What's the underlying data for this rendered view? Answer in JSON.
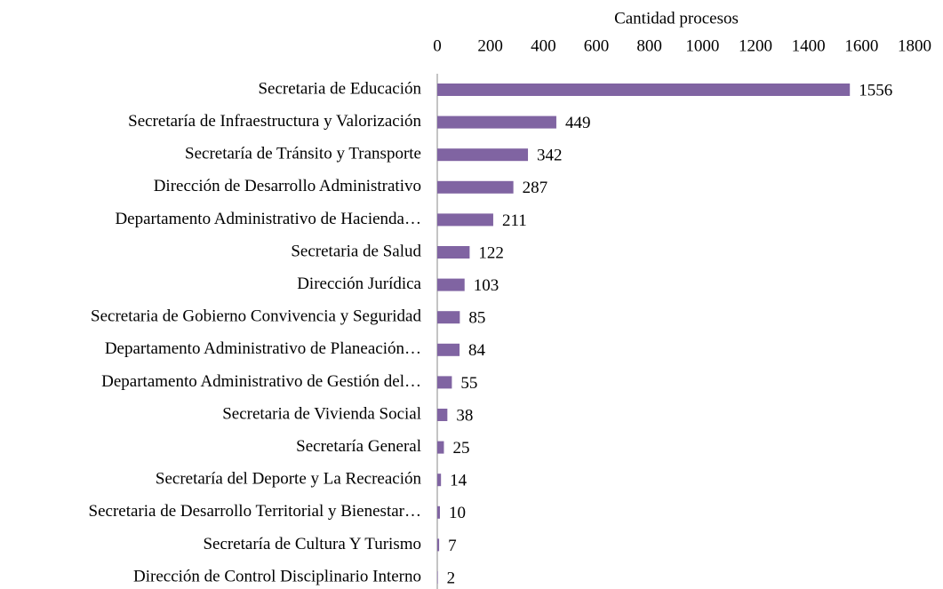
{
  "chart_data": {
    "type": "bar",
    "orientation": "horizontal",
    "x_label": "Cantidad procesos",
    "categories": [
      "Secretaria de Educación",
      "Secretaría de Infraestructura y Valorización",
      "Secretaría de Tránsito y Transporte",
      "Dirección de Desarrollo Administrativo",
      "Departamento Administrativo de Hacienda…",
      "Secretaria de Salud",
      "Dirección Jurídica",
      "Secretaria de Gobierno Convivencia y Seguridad",
      "Departamento Administrativo de Planeación…",
      "Departamento Administrativo de Gestión del…",
      "Secretaria de Vivienda Social",
      "Secretaría General",
      "Secretaría del Deporte y La Recreación",
      "Secretaria de Desarrollo Territorial y Bienestar…",
      "Secretaría de Cultura Y Turismo",
      "Dirección de Control Disciplinario Interno"
    ],
    "values": [
      1556,
      449,
      342,
      287,
      211,
      122,
      103,
      85,
      84,
      55,
      38,
      25,
      14,
      10,
      7,
      2
    ],
    "color": "#8064a2",
    "xlim": [
      0,
      1800
    ],
    "xticks": [
      0,
      200,
      400,
      600,
      800,
      1000,
      1200,
      1400,
      1600,
      1800
    ]
  }
}
